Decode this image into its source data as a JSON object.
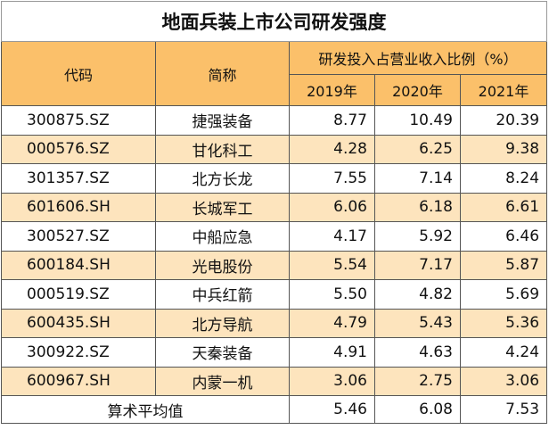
{
  "title": "地面兵装上市公司研发强度",
  "headers": {
    "code": "代码",
    "name": "简称",
    "group": "研发投入占营业收入比例（%）",
    "years": [
      "2019年",
      "2020年",
      "2021年"
    ]
  },
  "rows": [
    {
      "code": "300875.SZ",
      "name": "捷强装备",
      "v2019": "8.77",
      "v2020": "10.49",
      "v2021": "20.39"
    },
    {
      "code": "000576.SZ",
      "name": "甘化科工",
      "v2019": "4.28",
      "v2020": "6.25",
      "v2021": "9.38"
    },
    {
      "code": "301357.SZ",
      "name": "北方长龙",
      "v2019": "7.55",
      "v2020": "7.14",
      "v2021": "8.24"
    },
    {
      "code": "601606.SH",
      "name": "长城军工",
      "v2019": "6.06",
      "v2020": "6.18",
      "v2021": "6.61"
    },
    {
      "code": "300527.SZ",
      "name": "中船应急",
      "v2019": "4.17",
      "v2020": "5.92",
      "v2021": "6.46"
    },
    {
      "code": "600184.SH",
      "name": "光电股份",
      "v2019": "5.54",
      "v2020": "7.17",
      "v2021": "5.87"
    },
    {
      "code": "000519.SZ",
      "name": "中兵红箭",
      "v2019": "5.50",
      "v2020": "4.82",
      "v2021": "5.69"
    },
    {
      "code": "600435.SH",
      "name": "北方导航",
      "v2019": "4.79",
      "v2020": "5.43",
      "v2021": "5.36"
    },
    {
      "code": "300922.SZ",
      "name": "天秦装备",
      "v2019": "4.91",
      "v2020": "4.63",
      "v2021": "4.24"
    },
    {
      "code": "600967.SH",
      "name": "内蒙一机",
      "v2019": "3.06",
      "v2020": "2.75",
      "v2021": "3.06"
    }
  ],
  "average": {
    "label": "算术平均值",
    "v2019": "5.46",
    "v2020": "6.08",
    "v2021": "7.53"
  },
  "colors": {
    "header": "#fbc06a",
    "alt_row": "#fde4bd",
    "plain_row": "#ffffff",
    "border": "#555555"
  }
}
